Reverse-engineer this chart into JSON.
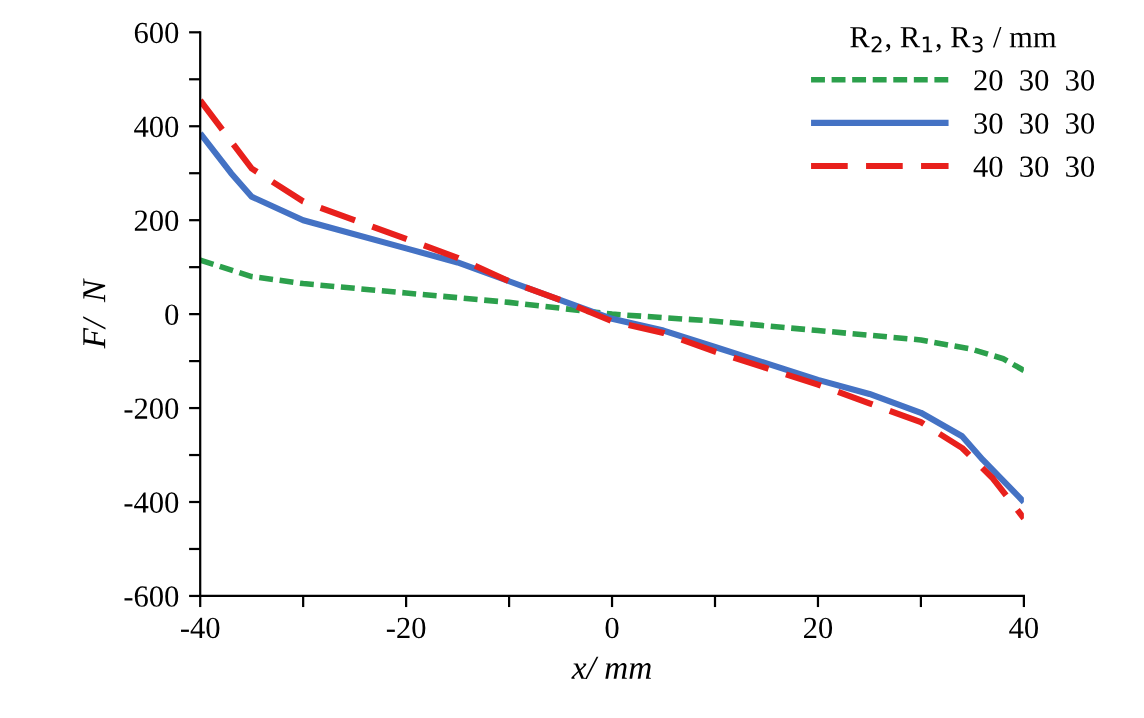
{
  "chart_data": {
    "type": "line",
    "xlabel": "x/ mm",
    "ylabel": "F/  N",
    "legend_title": "R$_{2}$, R$_{1}$, R$_{3}$ / mm",
    "legend": "top right",
    "grid": false,
    "xlim": [
      -40,
      40
    ],
    "xticks": [
      -40,
      {
        "value": -30,
        "label": null
      },
      -20,
      {
        "value": -10,
        "label": null
      },
      0,
      {
        "value": 10,
        "label": null
      },
      20,
      {
        "value": 30,
        "label": null
      },
      40
    ],
    "ylim": [
      -600,
      600
    ],
    "yticks": [
      -600,
      {
        "value": -500,
        "label": null
      },
      -400,
      {
        "value": -300,
        "label": null
      },
      -200,
      {
        "value": -100,
        "label": null
      },
      0,
      {
        "value": 100,
        "label": null
      },
      200,
      {
        "value": 300,
        "label": null
      },
      400,
      {
        "value": 500,
        "label": null
      },
      600
    ],
    "series": [
      {
        "name": "20  30  30",
        "color": "#2ca04c",
        "line_style": "dotted",
        "x": [
          -40,
          -35,
          -30,
          -20,
          -10,
          0,
          10,
          20,
          30,
          35,
          38,
          40
        ],
        "values": [
          115,
          80,
          65,
          45,
          25,
          0,
          -15,
          -35,
          -55,
          -75,
          -95,
          -120
        ]
      },
      {
        "name": "30  30  30",
        "color": "#4472c4",
        "line_style": "solid",
        "x": [
          -40,
          -37,
          -35,
          -30,
          -20,
          -15,
          -10,
          -5,
          0,
          5,
          10,
          15,
          20,
          25,
          30,
          34,
          36,
          40
        ],
        "values": [
          385,
          300,
          250,
          200,
          140,
          110,
          70,
          30,
          -10,
          -35,
          -70,
          -105,
          -140,
          -170,
          -210,
          -260,
          -310,
          -400
        ]
      },
      {
        "name": "40  30  30",
        "color": "#e8201c",
        "line_style": "dashed",
        "x": [
          -40,
          -35,
          -30,
          -20,
          -15,
          -10,
          -5,
          0,
          5,
          10,
          15,
          20,
          25,
          30,
          34,
          37,
          40
        ],
        "values": [
          455,
          310,
          240,
          160,
          120,
          70,
          30,
          -15,
          -40,
          -80,
          -115,
          -150,
          -190,
          -230,
          -285,
          -350,
          -435
        ]
      }
    ]
  }
}
